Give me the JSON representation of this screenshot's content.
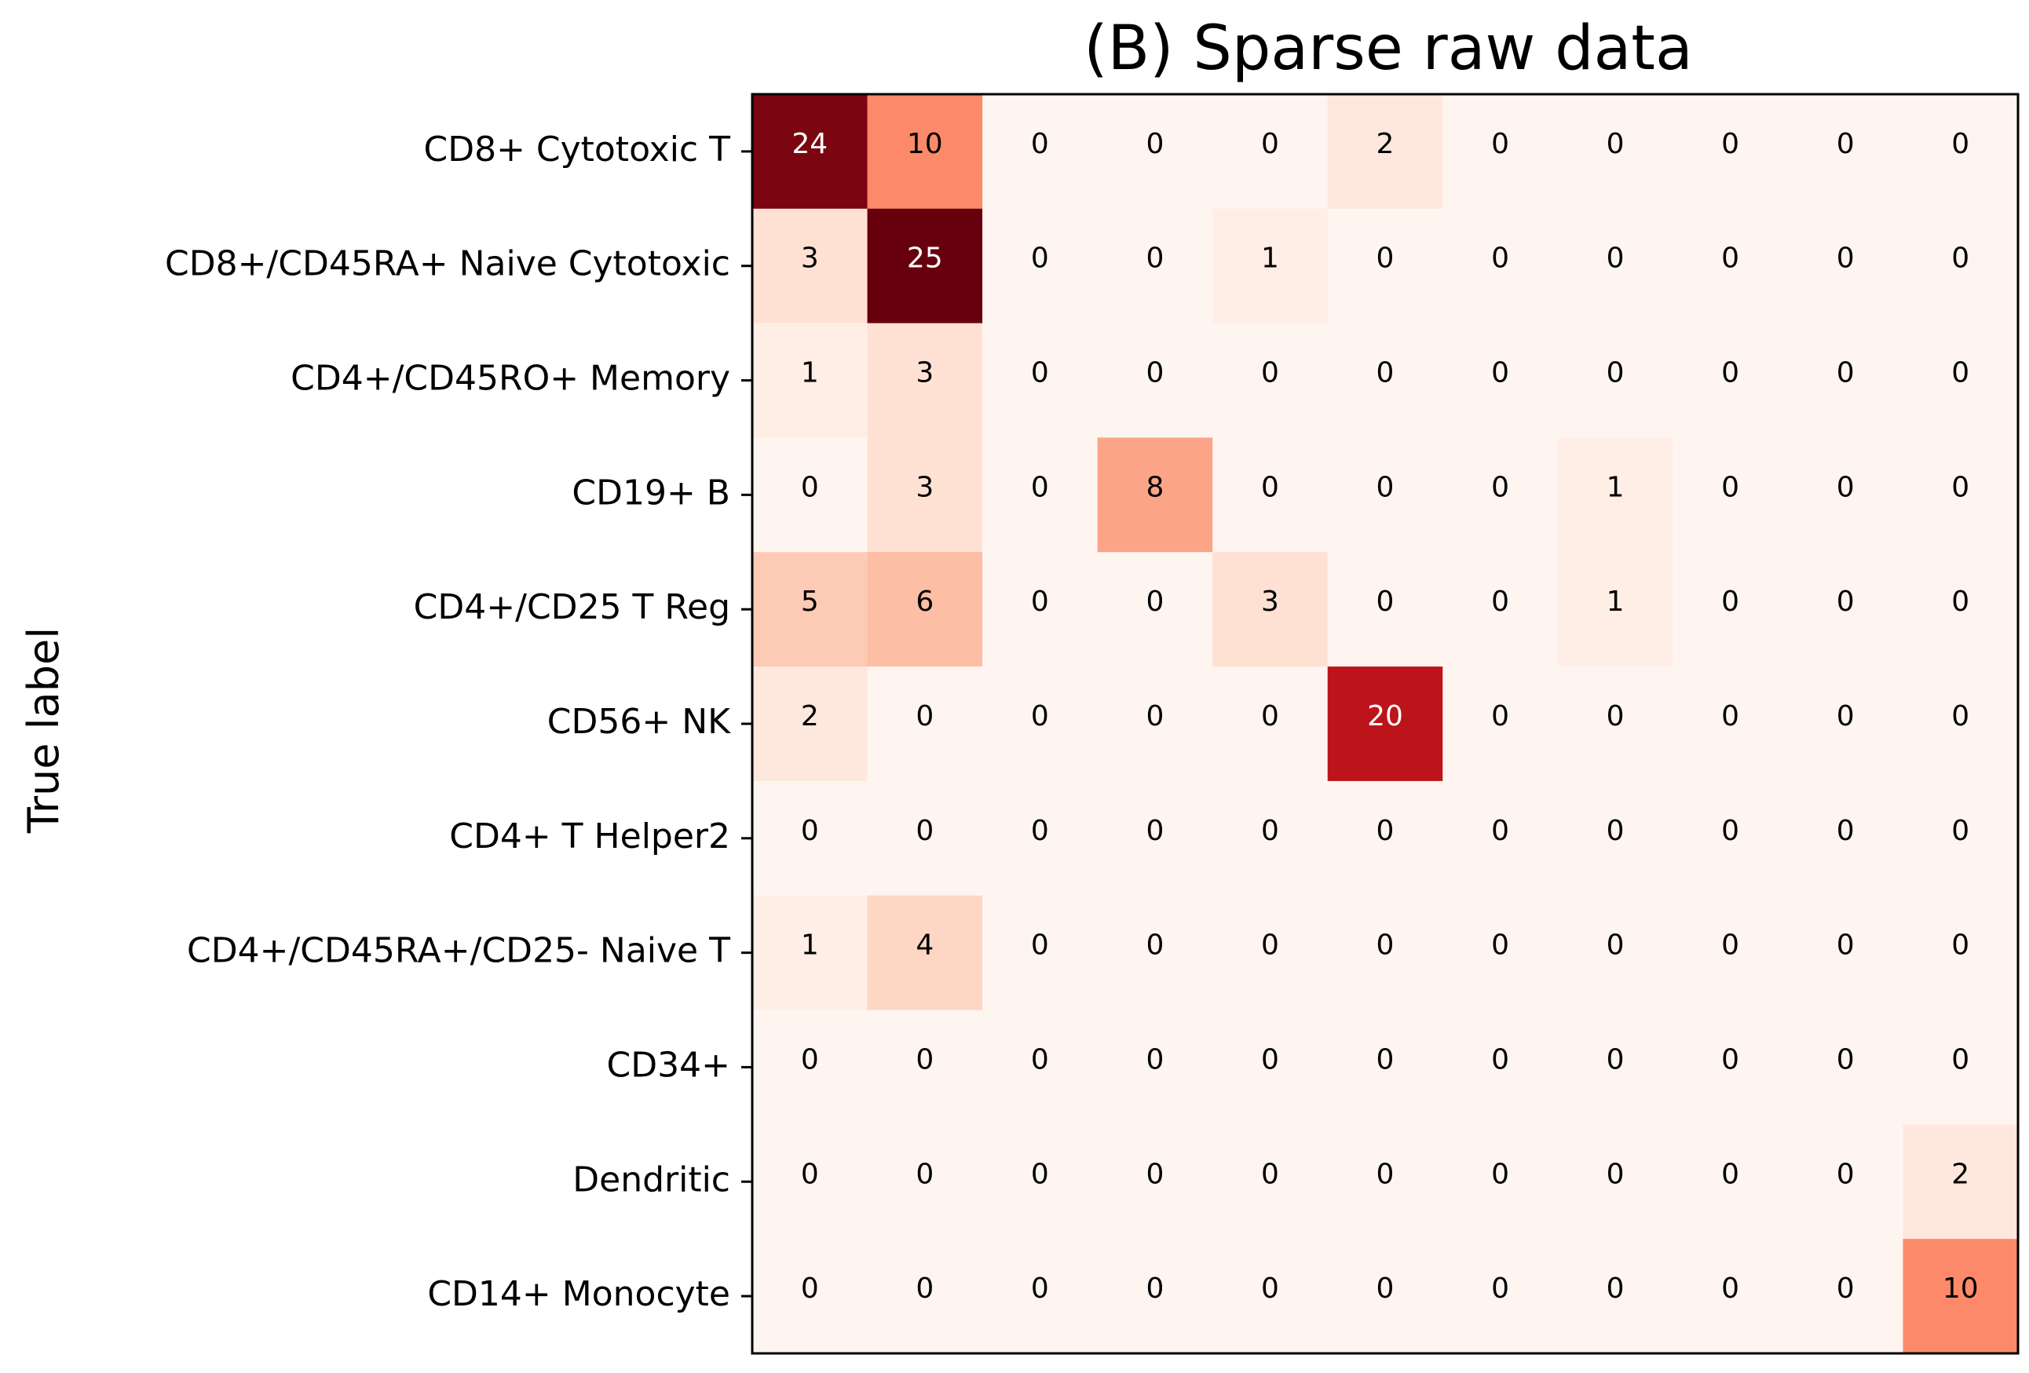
{
  "chart_data": {
    "type": "heatmap",
    "title": "(B) Sparse raw data",
    "ylabel": "True label",
    "xlabel": "",
    "colormap": "Reds",
    "vmin": 0,
    "vmax": 25,
    "row_labels": [
      "CD8+ Cytotoxic T",
      "CD8+/CD45RA+ Naive Cytotoxic",
      "CD4+/CD45RO+ Memory",
      "CD19+ B",
      "CD4+/CD25 T Reg",
      "CD56+ NK",
      "CD4+ T Helper2",
      "CD4+/CD45RA+/CD25- Naive T",
      "CD34+",
      "Dendritic",
      "CD14+ Monocyte"
    ],
    "values": [
      [
        24,
        10,
        0,
        0,
        0,
        2,
        0,
        0,
        0,
        0,
        0
      ],
      [
        3,
        25,
        0,
        0,
        1,
        0,
        0,
        0,
        0,
        0,
        0
      ],
      [
        1,
        3,
        0,
        0,
        0,
        0,
        0,
        0,
        0,
        0,
        0
      ],
      [
        0,
        3,
        0,
        8,
        0,
        0,
        0,
        1,
        0,
        0,
        0
      ],
      [
        5,
        6,
        0,
        0,
        3,
        0,
        0,
        1,
        0,
        0,
        0
      ],
      [
        2,
        0,
        0,
        0,
        0,
        20,
        0,
        0,
        0,
        0,
        0
      ],
      [
        0,
        0,
        0,
        0,
        0,
        0,
        0,
        0,
        0,
        0,
        0
      ],
      [
        1,
        4,
        0,
        0,
        0,
        0,
        0,
        0,
        0,
        0,
        0
      ],
      [
        0,
        0,
        0,
        0,
        0,
        0,
        0,
        0,
        0,
        0,
        0
      ],
      [
        0,
        0,
        0,
        0,
        0,
        0,
        0,
        0,
        0,
        0,
        2
      ],
      [
        0,
        0,
        0,
        0,
        0,
        0,
        0,
        0,
        0,
        0,
        10
      ]
    ],
    "x_ticks_shown": false,
    "grid": false
  }
}
